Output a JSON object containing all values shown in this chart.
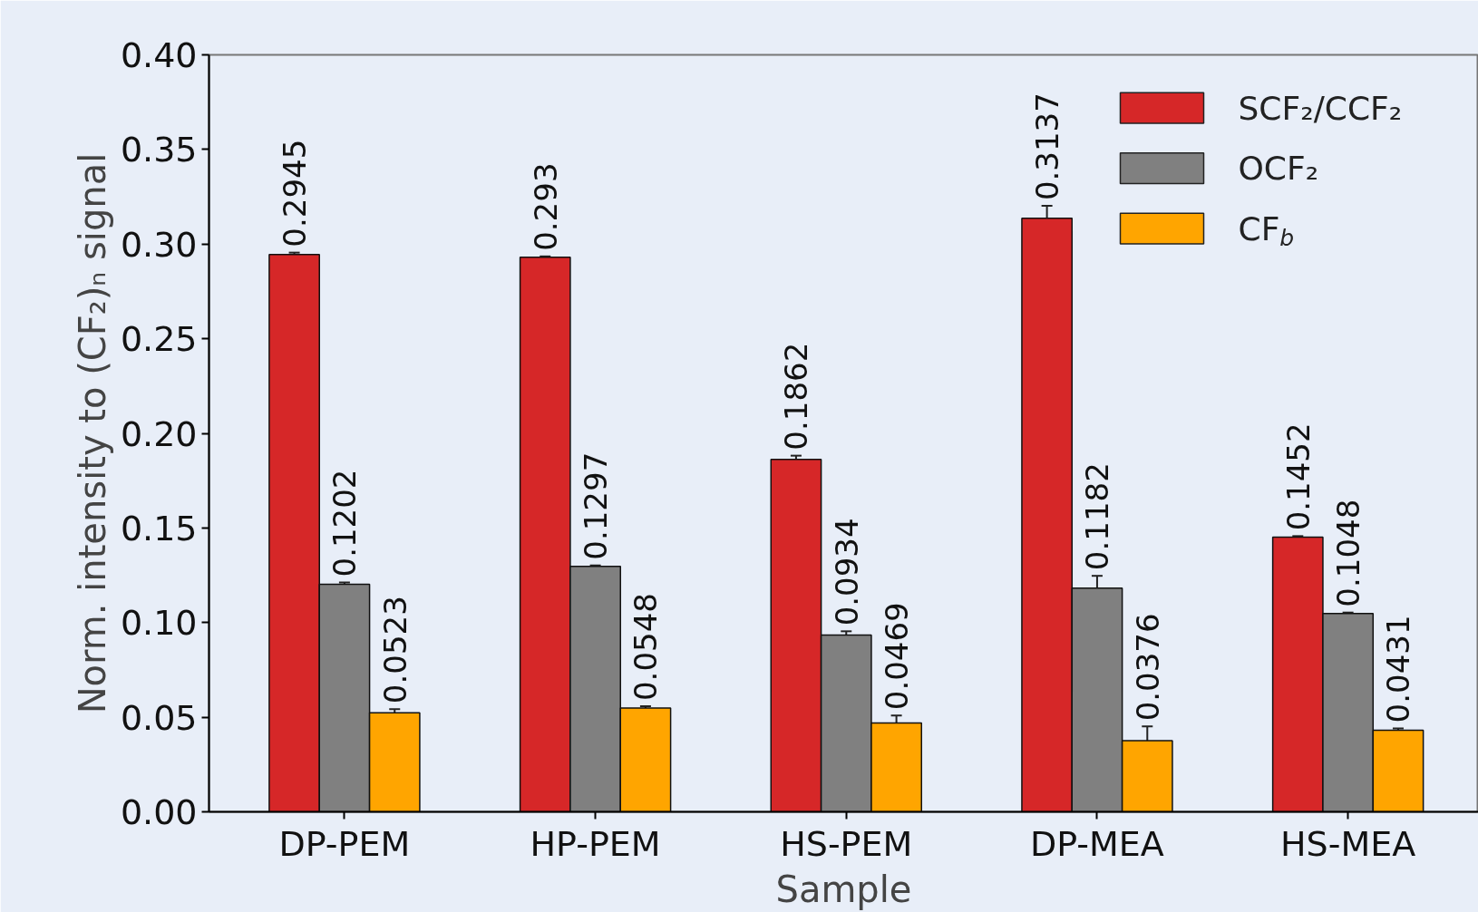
{
  "chart_data": {
    "type": "bar",
    "xlabel": "Sample",
    "ylabel": "Norm. intensity to (CF₂)ₙ signal",
    "categories": [
      "DP-PEM",
      "HP-PEM",
      "HS-PEM",
      "DP-MEA",
      "HS-MEA"
    ],
    "series": [
      {
        "name": "SCF₂/CCF₂",
        "color": "#d62728",
        "values": [
          0.2945,
          0.293,
          0.1862,
          0.3137,
          0.1452
        ],
        "errors": [
          0.001,
          0.0005,
          0.002,
          0.0065,
          0.0005
        ]
      },
      {
        "name": "OCF₂",
        "color": "#808080",
        "values": [
          0.1202,
          0.1297,
          0.0934,
          0.1182,
          0.1048
        ],
        "errors": [
          0.001,
          0.0005,
          0.002,
          0.0065,
          0.0005
        ]
      },
      {
        "name": "CF$_{b}$",
        "color": "#ffa500",
        "values": [
          0.0523,
          0.0548,
          0.0469,
          0.0376,
          0.0431
        ],
        "errors": [
          0.002,
          0.001,
          0.004,
          0.0075,
          0.001
        ]
      }
    ],
    "ylim": [
      0,
      0.4
    ],
    "yticks": [
      {
        "value": 0,
        "label": "0.00"
      },
      {
        "value": 0.05,
        "label": "0.05"
      },
      {
        "value": 0.1,
        "label": "0.10"
      },
      {
        "value": 0.15,
        "label": "0.15"
      },
      {
        "value": 0.2,
        "label": "0.20"
      },
      {
        "value": 0.25,
        "label": "0.25"
      },
      {
        "value": 0.3,
        "label": "0.30"
      },
      {
        "value": 0.35,
        "label": "0.35"
      },
      {
        "value": 0.4,
        "label": "0.40"
      }
    ],
    "data_labels": true,
    "grid": false,
    "legend": "top right"
  }
}
